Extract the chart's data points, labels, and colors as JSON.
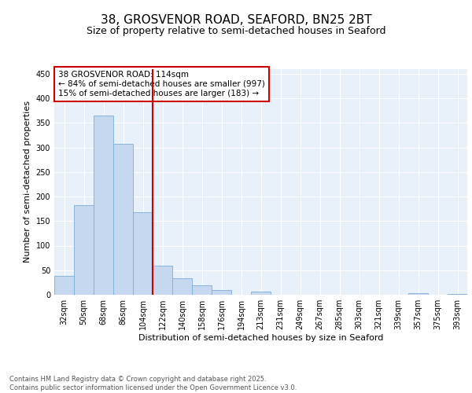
{
  "title_line1": "38, GROSVENOR ROAD, SEAFORD, BN25 2BT",
  "title_line2": "Size of property relative to semi-detached houses in Seaford",
  "xlabel": "Distribution of semi-detached houses by size in Seaford",
  "ylabel": "Number of semi-detached properties",
  "categories": [
    "32sqm",
    "50sqm",
    "68sqm",
    "86sqm",
    "104sqm",
    "122sqm",
    "140sqm",
    "158sqm",
    "176sqm",
    "194sqm",
    "213sqm",
    "231sqm",
    "249sqm",
    "267sqm",
    "285sqm",
    "303sqm",
    "321sqm",
    "339sqm",
    "357sqm",
    "375sqm",
    "393sqm"
  ],
  "values": [
    38,
    183,
    365,
    307,
    168,
    60,
    33,
    20,
    9,
    0,
    7,
    0,
    0,
    0,
    0,
    0,
    0,
    0,
    3,
    0,
    2
  ],
  "bar_color": "#c5d8f0",
  "bar_edge_color": "#7aaed6",
  "vline_position": 4.5,
  "vline_color": "#cc0000",
  "annotation_text": "38 GROSVENOR ROAD: 114sqm\n← 84% of semi-detached houses are smaller (997)\n15% of semi-detached houses are larger (183) →",
  "annotation_box_facecolor": "#ffffff",
  "annotation_box_edgecolor": "#cc0000",
  "ylim": [
    0,
    460
  ],
  "yticks": [
    0,
    50,
    100,
    150,
    200,
    250,
    300,
    350,
    400,
    450
  ],
  "bg_color": "#ffffff",
  "plot_bg_color": "#e8f0fa",
  "footer_text": "Contains HM Land Registry data © Crown copyright and database right 2025.\nContains public sector information licensed under the Open Government Licence v3.0.",
  "title_fontsize": 11,
  "subtitle_fontsize": 9,
  "axis_label_fontsize": 8,
  "tick_fontsize": 7,
  "annotation_fontsize": 7.5,
  "footer_fontsize": 6
}
